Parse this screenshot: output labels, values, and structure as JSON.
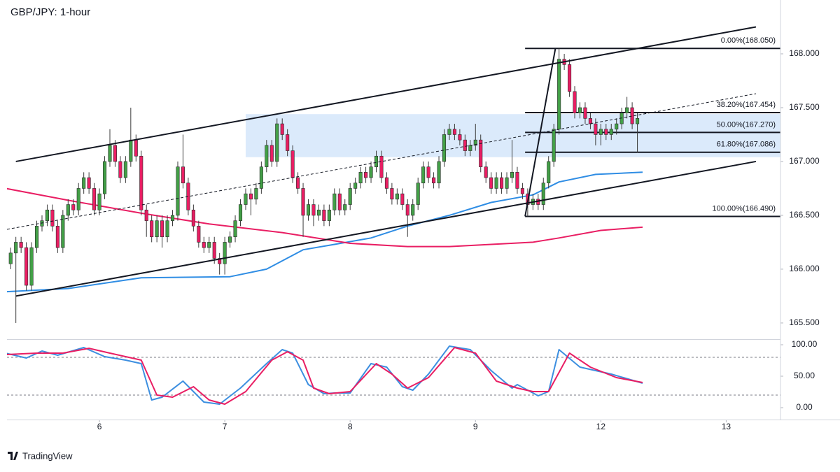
{
  "chart_data": [
    {
      "type": "candlestick",
      "title": "GBP/JPY: 1-hour",
      "x": [
        -17,
        -16,
        -15,
        -14,
        -13,
        -12,
        -11,
        -10,
        -9,
        -8,
        -7,
        -6,
        -5,
        -4,
        -3,
        -2,
        -1,
        0,
        1,
        2,
        3,
        4,
        5,
        6,
        7,
        8,
        9,
        10,
        11,
        12,
        13,
        14,
        15,
        16,
        17,
        18,
        19,
        20,
        21,
        22,
        23,
        24,
        25,
        26,
        27,
        28,
        29,
        30,
        31,
        32,
        33,
        34,
        35,
        36,
        37,
        38,
        39,
        40,
        41,
        42,
        43,
        44,
        45,
        46,
        47,
        48,
        49,
        50,
        51,
        52,
        53,
        54,
        55,
        56,
        57,
        58,
        59,
        60,
        61,
        62,
        63,
        64,
        65,
        66,
        67,
        68,
        69,
        70,
        71,
        72,
        73,
        74,
        75,
        76,
        77,
        78,
        79,
        80,
        81,
        82,
        83,
        84,
        85,
        86,
        87,
        88,
        89,
        90,
        91,
        92,
        93,
        94,
        95,
        96,
        97,
        98,
        99,
        100,
        101,
        102,
        103
      ],
      "open": [
        166.05,
        166.15,
        166.25,
        166.2,
        165.85,
        166.2,
        166.4,
        166.45,
        166.55,
        166.4,
        166.2,
        166.5,
        166.6,
        166.55,
        166.75,
        166.85,
        166.75,
        166.55,
        166.7,
        167.0,
        167.15,
        167.0,
        166.85,
        167.0,
        167.2,
        167.05,
        166.55,
        166.45,
        166.3,
        166.45,
        166.3,
        166.45,
        166.5,
        166.95,
        166.8,
        166.55,
        166.4,
        166.25,
        166.2,
        166.25,
        166.1,
        166.05,
        166.25,
        166.3,
        166.45,
        166.6,
        166.7,
        166.65,
        166.75,
        166.95,
        167.15,
        167.0,
        167.35,
        167.25,
        167.1,
        166.85,
        166.75,
        166.5,
        166.6,
        166.5,
        166.55,
        166.45,
        166.55,
        166.7,
        166.55,
        166.6,
        166.75,
        166.8,
        166.9,
        166.85,
        166.95,
        167.05,
        166.85,
        166.75,
        166.65,
        166.7,
        166.6,
        166.5,
        166.6,
        166.8,
        166.95,
        166.85,
        166.8,
        167.0,
        167.25,
        167.3,
        167.25,
        167.2,
        167.1,
        167.15,
        167.2,
        166.95,
        166.85,
        166.75,
        166.85,
        166.75,
        166.85,
        166.9,
        166.75,
        166.7,
        166.6,
        166.65,
        166.6,
        166.8,
        167.0,
        167.3,
        167.95,
        167.9,
        167.65,
        167.45,
        167.5,
        167.4,
        167.35,
        167.25,
        167.3,
        167.25,
        167.3,
        167.35,
        167.45,
        167.5,
        167.35
      ],
      "high": [
        166.2,
        166.3,
        166.3,
        166.25,
        166.25,
        166.45,
        166.5,
        166.6,
        166.6,
        166.45,
        166.55,
        166.65,
        166.65,
        166.8,
        166.9,
        166.9,
        166.8,
        166.75,
        167.05,
        167.3,
        167.2,
        167.05,
        167.05,
        167.5,
        167.25,
        167.1,
        166.6,
        166.5,
        166.5,
        166.5,
        166.5,
        166.55,
        167.0,
        167.25,
        166.85,
        166.6,
        166.45,
        166.3,
        166.3,
        166.3,
        166.15,
        166.3,
        166.35,
        166.5,
        166.65,
        166.75,
        166.75,
        166.8,
        167.0,
        167.2,
        167.2,
        167.4,
        167.4,
        167.3,
        167.15,
        166.9,
        166.8,
        166.65,
        166.65,
        166.6,
        166.6,
        166.6,
        166.75,
        166.75,
        166.65,
        166.8,
        166.85,
        166.95,
        166.95,
        167.0,
        167.1,
        167.1,
        166.9,
        166.8,
        166.75,
        166.75,
        166.65,
        166.65,
        166.85,
        167.0,
        167.0,
        166.9,
        167.05,
        167.3,
        167.35,
        167.35,
        167.3,
        167.25,
        167.2,
        167.35,
        167.25,
        167.0,
        166.9,
        166.9,
        166.9,
        166.9,
        167.2,
        166.95,
        166.8,
        166.75,
        166.7,
        166.7,
        166.85,
        167.05,
        167.35,
        168.05,
        168.0,
        167.95,
        167.7,
        167.55,
        167.55,
        167.45,
        167.4,
        167.35,
        167.35,
        167.35,
        167.4,
        167.5,
        167.6,
        167.55,
        167.45
      ],
      "low": [
        166.0,
        165.5,
        166.15,
        165.8,
        165.8,
        166.15,
        166.35,
        166.4,
        166.35,
        166.15,
        166.15,
        166.45,
        166.5,
        166.5,
        166.7,
        166.7,
        166.5,
        166.5,
        166.65,
        166.95,
        166.95,
        166.8,
        166.8,
        166.95,
        167.0,
        166.5,
        166.3,
        166.25,
        166.25,
        166.2,
        166.25,
        166.4,
        166.45,
        166.75,
        166.5,
        166.35,
        166.2,
        166.15,
        166.15,
        166.05,
        165.95,
        165.95,
        166.2,
        166.25,
        166.4,
        166.55,
        166.5,
        166.6,
        166.7,
        166.9,
        166.95,
        166.95,
        167.2,
        167.05,
        166.8,
        166.7,
        166.3,
        166.45,
        166.4,
        166.45,
        166.4,
        166.4,
        166.5,
        166.5,
        166.5,
        166.55,
        166.7,
        166.75,
        166.8,
        166.8,
        166.9,
        166.8,
        166.7,
        166.6,
        166.6,
        166.55,
        166.3,
        166.45,
        166.55,
        166.75,
        166.8,
        166.75,
        166.75,
        166.95,
        167.2,
        167.2,
        167.15,
        167.05,
        167.05,
        167.1,
        166.9,
        166.8,
        166.7,
        166.7,
        166.7,
        166.7,
        166.8,
        166.7,
        166.65,
        166.49,
        166.55,
        166.55,
        166.55,
        166.75,
        166.95,
        167.25,
        167.85,
        167.6,
        167.4,
        167.4,
        167.35,
        167.3,
        167.15,
        167.15,
        167.2,
        167.2,
        167.25,
        167.3,
        167.4,
        167.3,
        167.08
      ],
      "close": [
        166.15,
        166.25,
        166.2,
        165.85,
        166.2,
        166.4,
        166.45,
        166.55,
        166.4,
        166.2,
        166.5,
        166.6,
        166.55,
        166.75,
        166.85,
        166.75,
        166.55,
        166.7,
        167.0,
        167.15,
        167.0,
        166.85,
        167.0,
        167.2,
        167.05,
        166.55,
        166.45,
        166.3,
        166.45,
        166.3,
        166.45,
        166.5,
        166.95,
        166.8,
        166.55,
        166.4,
        166.25,
        166.2,
        166.25,
        166.1,
        166.05,
        166.25,
        166.3,
        166.45,
        166.6,
        166.7,
        166.65,
        166.75,
        166.95,
        167.15,
        167.0,
        167.35,
        167.25,
        167.1,
        166.85,
        166.75,
        166.5,
        166.6,
        166.5,
        166.55,
        166.45,
        166.55,
        166.7,
        166.55,
        166.6,
        166.75,
        166.8,
        166.9,
        166.85,
        166.95,
        167.05,
        166.85,
        166.75,
        166.65,
        166.7,
        166.6,
        166.5,
        166.6,
        166.8,
        166.95,
        166.85,
        166.8,
        167.0,
        167.25,
        167.3,
        167.25,
        167.2,
        167.1,
        167.15,
        167.2,
        166.95,
        166.85,
        166.75,
        166.85,
        166.75,
        166.85,
        166.9,
        166.75,
        166.7,
        166.6,
        166.65,
        166.6,
        166.8,
        167.0,
        167.3,
        167.95,
        167.9,
        167.65,
        167.45,
        167.5,
        167.4,
        167.35,
        167.25,
        167.3,
        167.25,
        167.3,
        167.35,
        167.45,
        167.5,
        167.35,
        167.4
      ],
      "up_color": "#43a047",
      "down_color": "#e91e63",
      "xlim": [
        -17.7,
        130.4
      ],
      "ylim": [
        165.35,
        168.5
      ],
      "yticks": [
        {
          "value": 168,
          "label": "168.000"
        },
        {
          "value": 167.5,
          "label": "167.500"
        },
        {
          "value": 167,
          "label": "167.000"
        },
        {
          "value": 166.5,
          "label": "166.500"
        },
        {
          "value": 166,
          "label": "166.000"
        },
        {
          "value": 165.5,
          "label": "165.500"
        }
      ],
      "series": [
        {
          "color": "#2f8de4",
          "x": [
            -18,
            -6,
            8,
            25,
            32,
            39,
            45,
            52,
            59,
            67,
            75,
            83,
            88,
            95,
            104
          ],
          "values": [
            165.79,
            165.82,
            165.92,
            165.93,
            166.0,
            166.18,
            166.23,
            166.29,
            166.4,
            166.5,
            166.62,
            166.69,
            166.81,
            166.88,
            166.9
          ]
        },
        {
          "color": "#e91e63",
          "x": [
            -18,
            -6,
            8,
            21,
            35,
            48,
            59,
            67,
            75,
            83,
            88,
            96,
            104
          ],
          "values": [
            166.75,
            166.64,
            166.52,
            166.42,
            166.34,
            166.24,
            166.21,
            166.21,
            166.23,
            166.25,
            166.29,
            166.36,
            166.39
          ]
        }
      ],
      "trend_lines": [
        {
          "x": [
            -16,
            125.7
          ],
          "y": [
            167.0,
            168.25
          ]
        },
        {
          "x": [
            -16,
            125.7
          ],
          "y": [
            165.75,
            167.0
          ]
        },
        {
          "x": [
            -17.7,
            125.7
          ],
          "y": [
            166.37,
            167.63
          ],
          "dashed": true
        },
        {
          "x": [
            81.5,
            87.3
          ],
          "y": [
            166.49,
            168.05
          ]
        }
      ],
      "zone": {
        "x0": 28,
        "low": 167.04,
        "high": 167.44,
        "color": "#dbeafb"
      },
      "fib_start": 81.5,
      "fib_levels": [
        {
          "value": 168.05,
          "label": "0.00%(168.050)"
        },
        {
          "value": 167.454,
          "label": "38.20%(167.454)"
        },
        {
          "value": 167.27,
          "label": "50.00%(167.270)"
        },
        {
          "value": 167.086,
          "label": "61.80%(167.086)"
        },
        {
          "value": 166.49,
          "label": "100.00%(166.490)"
        }
      ]
    },
    {
      "type": "line",
      "xlim": [
        -17.7,
        130.4
      ],
      "xticks": [
        {
          "value": 0,
          "label": "6"
        },
        {
          "value": 24,
          "label": "7"
        },
        {
          "value": 48,
          "label": "8"
        },
        {
          "value": 72,
          "label": "9"
        },
        {
          "value": 96,
          "label": "12"
        },
        {
          "value": 120,
          "label": "13"
        }
      ],
      "ylim": [
        -18.9,
        107.8
      ],
      "yticks": [
        {
          "value": 100,
          "label": "100.00"
        },
        {
          "value": 50,
          "label": "50.00"
        },
        {
          "value": 0,
          "label": "0.00"
        }
      ],
      "hlines": [
        80,
        20
      ],
      "series": [
        {
          "color": "#3d8fe0",
          "x": [
            -18,
            -14,
            -11,
            -8,
            -3,
            1,
            5,
            8,
            10,
            12,
            16,
            20,
            23,
            27,
            32,
            35,
            37,
            40,
            43,
            45,
            48,
            52,
            55,
            58,
            60,
            63,
            67,
            71,
            75,
            79,
            80,
            84,
            86,
            88,
            92,
            98,
            104
          ],
          "values": [
            86.7,
            78.9,
            90,
            83.3,
            95.6,
            81.1,
            75.6,
            70,
            12.2,
            16.7,
            42.2,
            8.9,
            5.6,
            31.1,
            70,
            92.2,
            86.7,
            36.7,
            22.2,
            23.3,
            23.3,
            70,
            64.4,
            33.3,
            27.8,
            53.3,
            97.8,
            92.2,
            58.9,
            31.1,
            36.7,
            18.9,
            25.6,
            92.2,
            64.4,
            53.3,
            38.9
          ]
        },
        {
          "color": "#e91e63",
          "x": [
            -18,
            -12,
            -7,
            -2,
            2,
            8,
            11,
            14,
            18,
            21,
            24,
            28,
            33,
            36,
            39,
            41,
            44,
            48,
            53,
            56,
            59,
            63,
            68,
            72,
            76,
            80,
            83,
            86,
            90,
            94,
            99,
            104
          ],
          "values": [
            84.4,
            86.7,
            86.7,
            94.4,
            86.7,
            75.6,
            20,
            16.7,
            33.3,
            12.2,
            5.6,
            25.6,
            75.6,
            88.9,
            75.6,
            31.1,
            22.2,
            25.6,
            70,
            53.3,
            31.1,
            47.8,
            95.6,
            86.7,
            42.2,
            31.1,
            25.6,
            25.6,
            86.7,
            64.4,
            47.8,
            40
          ]
        }
      ]
    }
  ],
  "branding": "TradingView"
}
